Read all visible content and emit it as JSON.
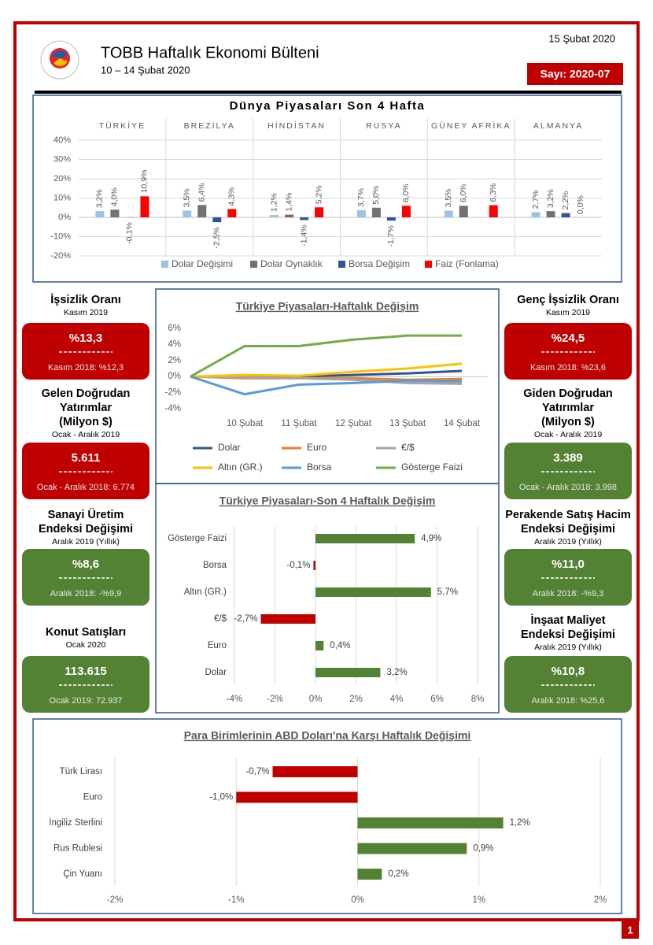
{
  "header": {
    "date": "15 Şubat 2020",
    "title": "TOBB Haftalık Ekonomi Bülteni",
    "subtitle": "10 – 14 Şubat 2020",
    "issue": "Sayı: 2020-07",
    "page": "1"
  },
  "indicators": [
    {
      "title": [
        "İşsizlik Oranı"
      ],
      "period": "Kasım 2019",
      "value": "%13,3",
      "previous": "Kasım 2018: %12,3",
      "color": "#c00000"
    },
    {
      "title": [
        "Gelen Doğrudan",
        "Yatırımlar",
        "(Milyon $)"
      ],
      "period": "Ocak - Aralık 2019",
      "value": "5.611",
      "previous": "Ocak - Aralık 2018: 6.774",
      "color": "#c00000"
    },
    {
      "title": [
        "Sanayi Üretim",
        "Endeksi Değişimi"
      ],
      "period": "Aralık 2019 (Yıllık)",
      "value": "%8,6",
      "previous": "Aralık 2018: -%9,9",
      "color": "#548235"
    },
    {
      "title": [
        "Konut Satışları"
      ],
      "period": "Ocak 2020",
      "value": "113.615",
      "previous": "Ocak 2019: 72.937",
      "color": "#548235"
    },
    {
      "title": [
        "Genç İşsizlik Oranı"
      ],
      "period": "Kasım 2019",
      "value": "%24,5",
      "previous": "Kasım 2018: %23,6",
      "color": "#c00000"
    },
    {
      "title": [
        "Giden Doğrudan",
        "Yatırımlar",
        "(Milyon $)"
      ],
      "period": "Ocak - Aralık 2019",
      "value": "3.389",
      "previous": "Ocak - Aralık 2018: 3.998",
      "color": "#548235"
    },
    {
      "title": [
        "Perakende Satış Hacim",
        "Endeksi Değişimi"
      ],
      "period": "Aralık 2019 (Yıllık)",
      "value": "%11,0",
      "previous": "Aralık 2018: -%9,3",
      "color": "#548235"
    },
    {
      "title": [
        "İnşaat Maliyet",
        "Endeksi Değişimi"
      ],
      "period": "Aralık 2019 (Yıllık)",
      "value": "%10,8",
      "previous": "Aralık 2018: %25,6",
      "color": "#548235"
    }
  ],
  "chart_data": [
    {
      "type": "bar",
      "title": "Dünya Piyasaları Son 4 Hafta",
      "categories": [
        "TÜRKİYE",
        "BREZİLYA",
        "HİNDİSTAN",
        "RUSYA",
        "GÜNEY AFRİKA",
        "ALMANYA"
      ],
      "series": [
        {
          "name": "Dolar Değişimi",
          "color": "#9dc3e6",
          "values": [
            3.2,
            3.5,
            1.2,
            3.7,
            3.5,
            2.7
          ],
          "value_labels": [
            "3,2%",
            "3,5%",
            "1,2%",
            "3,7%",
            "3,5%",
            "2,7%"
          ]
        },
        {
          "name": "Dolar Oynaklık",
          "color": "#767171",
          "values": [
            4.0,
            6.4,
            1.4,
            5.0,
            6.0,
            3.2
          ],
          "value_labels": [
            "4,0%",
            "6,4%",
            "1,4%",
            "5,0%",
            "6,0%",
            "3,2%"
          ]
        },
        {
          "name": "Borsa Değişim",
          "color": "#2f5597",
          "values": [
            -0.1,
            -2.5,
            -1.4,
            -1.7,
            null,
            2.2
          ],
          "value_labels": [
            "-0,1%",
            "-2,5%",
            "-1,4%",
            "-1,7%",
            null,
            "2,2%"
          ]
        },
        {
          "name": "Faiz (Fonlama)",
          "color": "#ff0000",
          "values": [
            10.9,
            4.3,
            5.2,
            6.0,
            6.3,
            0.0
          ],
          "value_labels": [
            "10,9%",
            "4,3%",
            "5,2%",
            "6,0%",
            "6,3%",
            "0,0%"
          ]
        }
      ],
      "ylim": [
        -20,
        40
      ],
      "yticks": [
        {
          "value": -20,
          "label": "-20%"
        },
        {
          "value": -10,
          "label": "-10%"
        },
        {
          "value": 0,
          "label": "0%"
        },
        {
          "value": 10,
          "label": "10%"
        },
        {
          "value": 20,
          "label": "20%"
        },
        {
          "value": 30,
          "label": "30%"
        },
        {
          "value": 40,
          "label": "40%"
        }
      ],
      "grid": true
    },
    {
      "type": "line",
      "title": "Türkiye Piyasaları-Haftalık Değişim",
      "categories": [
        null,
        "10 Şubat",
        "11 Şubat",
        "12 Şubat",
        "13 Şubat",
        "14 Şubat"
      ],
      "series": [
        {
          "name": "Dolar",
          "color": "#2f5597",
          "values": [
            0,
            -0.1,
            0,
            0.2,
            0.4,
            0.7
          ]
        },
        {
          "name": "Euro",
          "color": "#ed7d31",
          "values": [
            0,
            -0.2,
            -0.2,
            -0.2,
            -0.4,
            -0.3
          ]
        },
        {
          "name": "€/$",
          "color": "#a5a5a5",
          "values": [
            0,
            -0.1,
            -0.2,
            -0.4,
            -0.8,
            -0.9
          ]
        },
        {
          "name": "Altın (GR.)",
          "color": "#ffc000",
          "values": [
            0,
            0.2,
            0.1,
            0.6,
            1.0,
            1.6
          ]
        },
        {
          "name": "Borsa",
          "color": "#5b9bd5",
          "values": [
            0,
            -2.2,
            -1.0,
            -0.8,
            -0.5,
            -0.6
          ]
        },
        {
          "name": "Gösterge Faizi",
          "color": "#70ad47",
          "values": [
            0,
            3.8,
            3.8,
            4.6,
            5.1,
            5.1
          ]
        }
      ],
      "ylim": [
        -4,
        6
      ],
      "yticks": [
        {
          "value": -4,
          "label": "-4%"
        },
        {
          "value": -2,
          "label": "-2%"
        },
        {
          "value": 0,
          "label": "0%"
        },
        {
          "value": 2,
          "label": "2%"
        },
        {
          "value": 4,
          "label": "4%"
        },
        {
          "value": 6,
          "label": "6%"
        }
      ],
      "grid": false
    },
    {
      "type": "hbar",
      "title": "Türkiye Piyasaları-Son 4 Haftalık Değişim",
      "categories": [
        "Gösterge Faizi",
        "Borsa",
        "Altın (GR.)",
        "€/$",
        "Euro",
        "Dolar"
      ],
      "values": [
        4.9,
        -0.1,
        5.7,
        -2.7,
        0.4,
        3.2
      ],
      "value_labels": [
        "4,9%",
        "-0,1%",
        "5,7%",
        "-2,7%",
        "0,4%",
        "3,2%"
      ],
      "positive_color": "#548235",
      "negative_color": "#c00000",
      "xlim": [
        -4,
        8
      ],
      "xticks": [
        {
          "value": -4,
          "label": "-4%"
        },
        {
          "value": -2,
          "label": "-2%"
        },
        {
          "value": 0,
          "label": "0%"
        },
        {
          "value": 2,
          "label": "2%"
        },
        {
          "value": 4,
          "label": "4%"
        },
        {
          "value": 6,
          "label": "6%"
        },
        {
          "value": 8,
          "label": "8%"
        }
      ],
      "grid": true
    },
    {
      "type": "hbar",
      "title": "Para Birimlerinin ABD Doları'na Karşı Haftalık Değişimi",
      "categories": [
        "Türk Lirası",
        "Euro",
        "İngiliz Sterlini",
        "Rus Rublesi",
        "Çin Yuanı"
      ],
      "values": [
        -0.7,
        -1.0,
        1.2,
        0.9,
        0.2
      ],
      "value_labels": [
        "-0,7%",
        "-1,0%",
        "1,2%",
        "0,9%",
        "0,2%"
      ],
      "positive_color": "#548235",
      "negative_color": "#c00000",
      "xlim": [
        -2,
        2
      ],
      "xticks": [
        {
          "value": -2,
          "label": "-2%"
        },
        {
          "value": -1,
          "label": "-1%"
        },
        {
          "value": 0,
          "label": "0%"
        },
        {
          "value": 1,
          "label": "1%"
        },
        {
          "value": 2,
          "label": "2%"
        }
      ],
      "grid": true
    }
  ]
}
